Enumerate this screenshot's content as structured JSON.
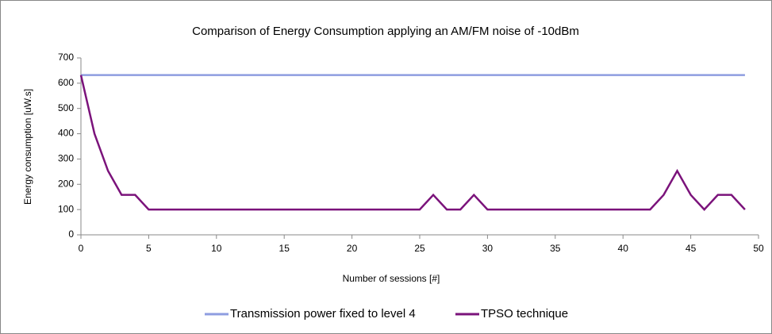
{
  "chart_data": {
    "type": "line",
    "title": "Comparison of Energy Consumption applying an AM/FM noise of -10dBm",
    "x_label": "Number of sessions [#]",
    "y_label": "Energy consumption [uW.s]",
    "x": [
      0,
      1,
      2,
      3,
      4,
      5,
      6,
      7,
      8,
      9,
      10,
      11,
      12,
      13,
      14,
      15,
      16,
      17,
      18,
      19,
      20,
      21,
      22,
      23,
      24,
      25,
      26,
      27,
      28,
      29,
      30,
      31,
      32,
      33,
      34,
      35,
      36,
      37,
      38,
      39,
      40,
      41,
      42,
      43,
      44,
      45,
      46,
      47,
      48,
      49
    ],
    "series": [
      {
        "name": "Transmission power fixed to level 4",
        "color": "#8e9de0",
        "values": [
          632,
          632,
          632,
          632,
          632,
          632,
          632,
          632,
          632,
          632,
          632,
          632,
          632,
          632,
          632,
          632,
          632,
          632,
          632,
          632,
          632,
          632,
          632,
          632,
          632,
          632,
          632,
          632,
          632,
          632,
          632,
          632,
          632,
          632,
          632,
          632,
          632,
          632,
          632,
          632,
          632,
          632,
          632,
          632,
          632,
          632,
          632,
          632,
          632,
          632
        ]
      },
      {
        "name": "TPSO technique",
        "color": "#7b137b",
        "values": [
          632,
          400,
          253,
          158,
          158,
          100,
          100,
          100,
          100,
          100,
          100,
          100,
          100,
          100,
          100,
          100,
          100,
          100,
          100,
          100,
          100,
          100,
          100,
          100,
          100,
          100,
          158,
          100,
          100,
          158,
          100,
          100,
          100,
          100,
          100,
          100,
          100,
          100,
          100,
          100,
          100,
          100,
          100,
          158,
          253,
          158,
          100,
          158,
          158,
          100
        ]
      }
    ],
    "xlim": [
      0,
      50
    ],
    "xticks": [
      0,
      5,
      10,
      15,
      20,
      25,
      30,
      35,
      40,
      45,
      50
    ],
    "ylim": [
      0,
      700
    ],
    "yticks": [
      0,
      100,
      200,
      300,
      400,
      500,
      600,
      700
    ],
    "grid": false,
    "legend": "bottom"
  }
}
